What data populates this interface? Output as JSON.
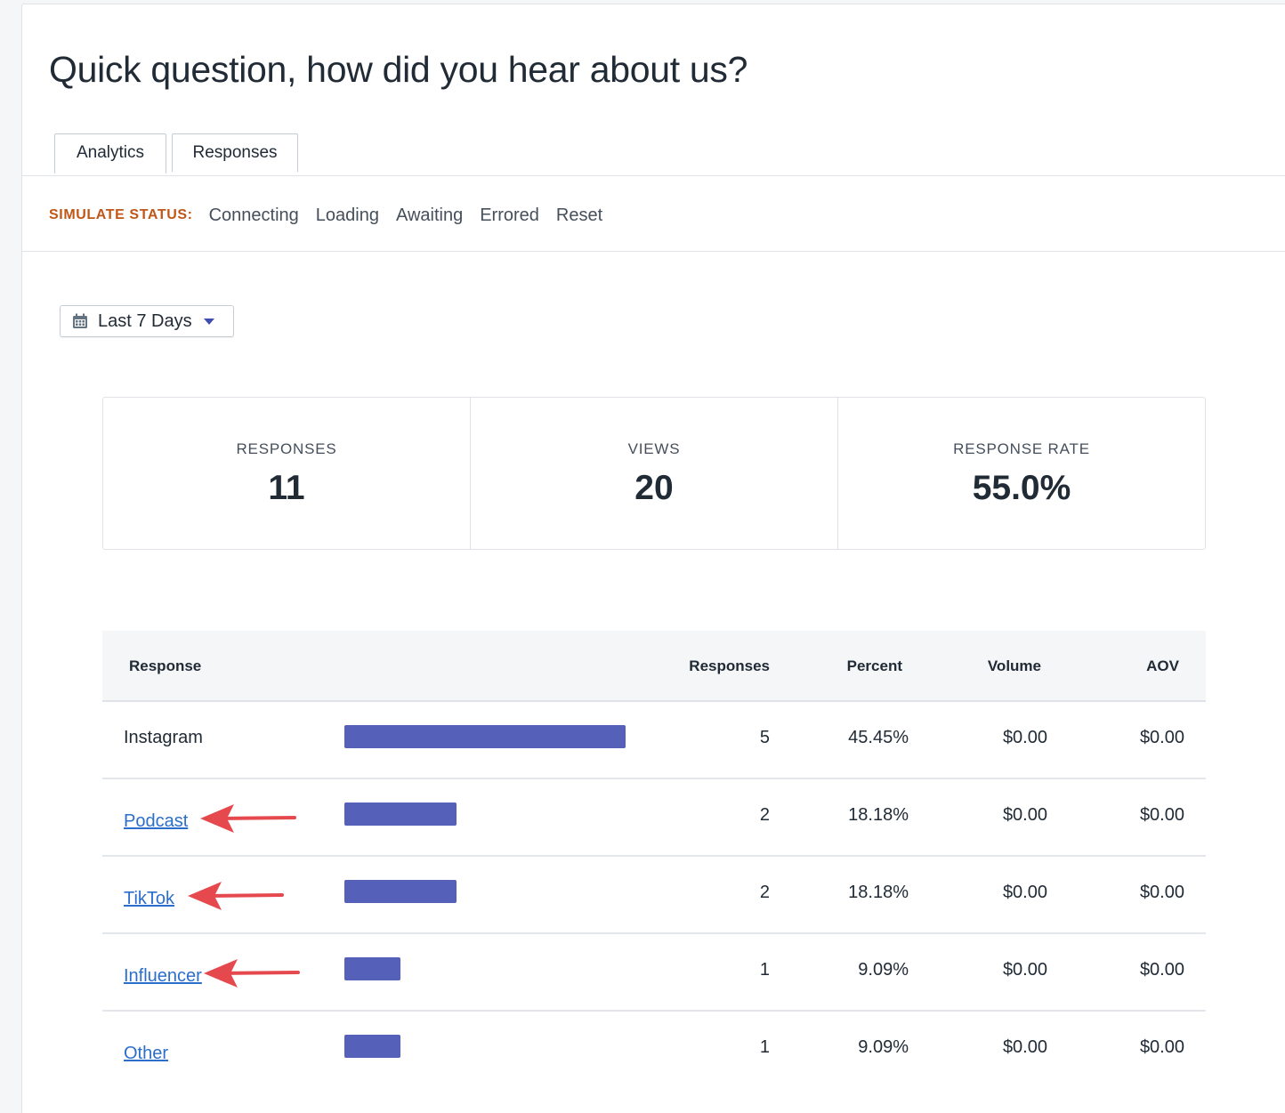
{
  "page": {
    "title": "Quick question, how did you hear about us?"
  },
  "tabs": [
    {
      "label": "Analytics",
      "active": true
    },
    {
      "label": "Responses",
      "active": false
    }
  ],
  "simulate": {
    "label": "SIMULATE STATUS:",
    "links": [
      "Connecting",
      "Loading",
      "Awaiting",
      "Errored",
      "Reset"
    ]
  },
  "date_range": {
    "label": "Last 7 Days",
    "icon": "calendar-icon"
  },
  "stats": [
    {
      "label": "RESPONSES",
      "value": "11"
    },
    {
      "label": "VIEWS",
      "value": "20"
    },
    {
      "label": "RESPONSE RATE",
      "value": "55.0%"
    }
  ],
  "table": {
    "headers": {
      "response": "Response",
      "responses": "Responses",
      "percent": "Percent",
      "volume": "Volume",
      "aov": "AOV"
    },
    "rows": [
      {
        "response": "Instagram",
        "count": "5",
        "percent": "45.45%",
        "volume": "$0.00",
        "aov": "$0.00",
        "share": 0.4545,
        "link": false,
        "annotated": false
      },
      {
        "response": "Podcast",
        "count": "2",
        "percent": "18.18%",
        "volume": "$0.00",
        "aov": "$0.00",
        "share": 0.1818,
        "link": true,
        "annotated": true
      },
      {
        "response": "TikTok",
        "count": "2",
        "percent": "18.18%",
        "volume": "$0.00",
        "aov": "$0.00",
        "share": 0.1818,
        "link": true,
        "annotated": true
      },
      {
        "response": "Influencer",
        "count": "1",
        "percent": "9.09%",
        "volume": "$0.00",
        "aov": "$0.00",
        "share": 0.0909,
        "link": true,
        "annotated": true
      },
      {
        "response": "Other",
        "count": "1",
        "percent": "9.09%",
        "volume": "$0.00",
        "aov": "$0.00",
        "share": 0.0909,
        "link": true,
        "annotated": false
      }
    ]
  },
  "colors": {
    "bar": "#5560b8",
    "link": "#2c6ecb",
    "annotation_arrow": "#e5484d",
    "simulate_label": "#c05717"
  }
}
